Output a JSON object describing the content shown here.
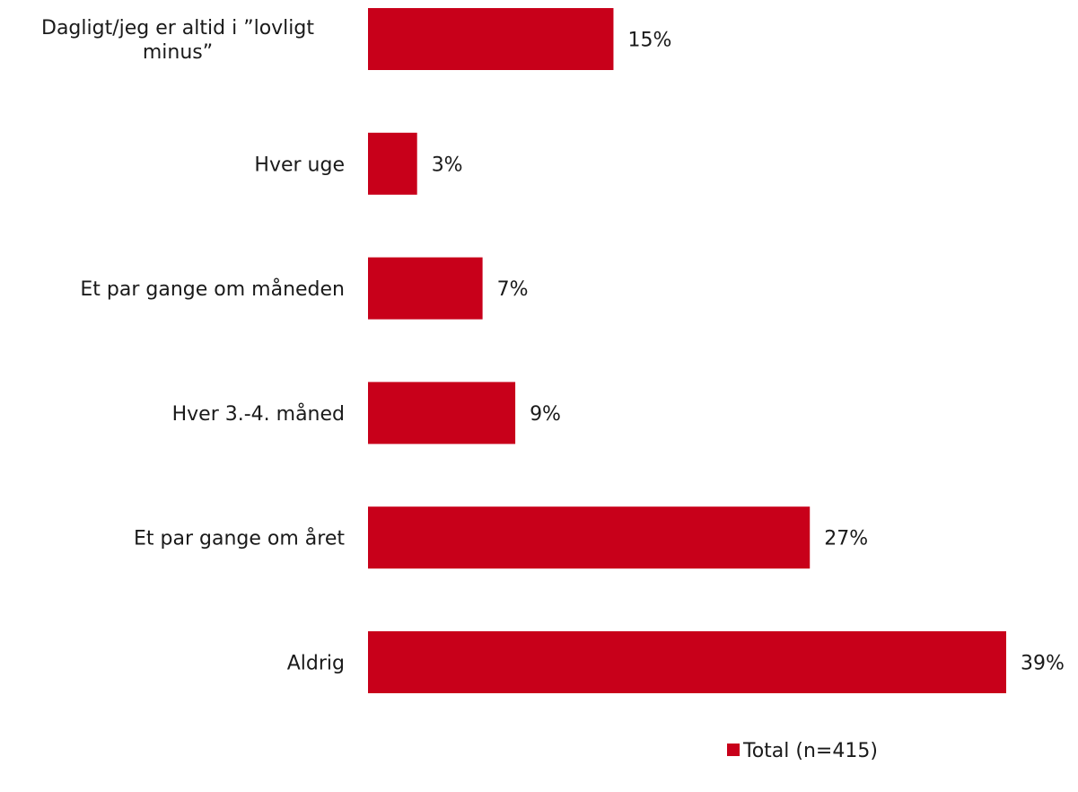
{
  "chart_data": {
    "type": "bar",
    "orientation": "horizontal",
    "title": "",
    "xlabel": "",
    "ylabel": "",
    "categories": [
      "Dagligt/jeg er altid i ”lovligt minus”",
      "Hver uge",
      "Et par gange om måneden",
      "Hver 3.-4. måned",
      "Et par gange om året",
      "Aldrig"
    ],
    "category_lines": [
      [
        "Dagligt/jeg er altid i ”lovligt",
        "minus”"
      ],
      [
        "Hver uge"
      ],
      [
        "Et par gange om måneden"
      ],
      [
        "Hver 3.-4. måned"
      ],
      [
        "Et par gange om året"
      ],
      [
        "Aldrig"
      ]
    ],
    "series": [
      {
        "name": "Total (n=415)",
        "color": "#C8001A",
        "values": [
          15,
          3,
          7,
          9,
          27,
          39
        ],
        "value_labels": [
          "15%",
          "3%",
          "7%",
          "9%",
          "27%",
          "39%"
        ]
      }
    ],
    "xlim": [
      0,
      39
    ],
    "grid": false,
    "legend_position": "bottom-right"
  }
}
